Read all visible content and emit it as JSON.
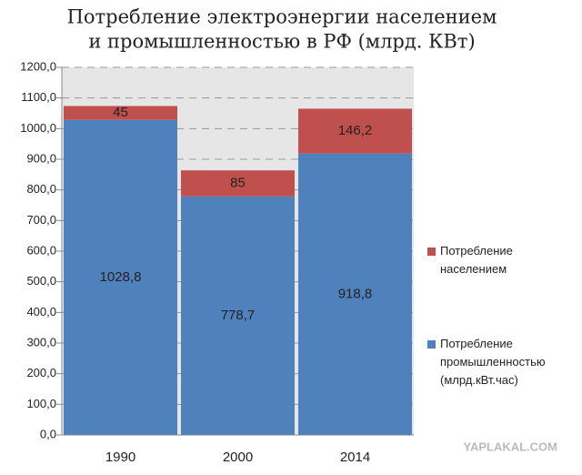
{
  "chart_data": {
    "type": "stacked_bar",
    "title": [
      "Потребление электроэнергии населением",
      "и промышленностью в РФ  (млрд. КВт)"
    ],
    "categories": [
      "1990",
      "2000",
      "2014"
    ],
    "series": [
      {
        "name": "Потребление промышленностью (млрд.кВт.час)",
        "color": "#4f81bd",
        "values": [
          1028.8,
          778.7,
          918.8
        ],
        "value_labels": [
          "1028,8",
          "778,7",
          "918,8"
        ]
      },
      {
        "name": "Потребление населением",
        "color": "#c0504d",
        "values": [
          45,
          85,
          146.2
        ],
        "value_labels": [
          "45",
          "85",
          "146,2"
        ]
      }
    ],
    "ylim": [
      0,
      1200
    ],
    "yticks": [
      {
        "value": 0,
        "label": "0,0"
      },
      {
        "value": 100,
        "label": "100,0"
      },
      {
        "value": 200,
        "label": "200,0"
      },
      {
        "value": 300,
        "label": "300,0"
      },
      {
        "value": 400,
        "label": "400,0"
      },
      {
        "value": 500,
        "label": "500,0"
      },
      {
        "value": 600,
        "label": "600,0"
      },
      {
        "value": 700,
        "label": "700,0"
      },
      {
        "value": 800,
        "label": "800,0"
      },
      {
        "value": 900,
        "label": "900,0"
      },
      {
        "value": 1000,
        "label": "1000,0"
      },
      {
        "value": 1100,
        "label": "1100,0"
      },
      {
        "value": 1200,
        "label": "1200,0"
      }
    ],
    "grid": true,
    "legend": "right",
    "watermark": "YAPLAKAL.COM"
  }
}
